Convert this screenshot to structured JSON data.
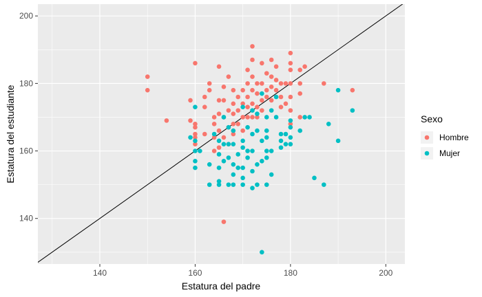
{
  "chart_data": {
    "type": "scatter",
    "xlabel": "Estatura del padre",
    "ylabel": "Estatura del estudiante",
    "xlim": [
      127,
      204
    ],
    "ylim": [
      126.5,
      203.5
    ],
    "x_ticks": [
      140,
      160,
      180,
      200
    ],
    "y_ticks": [
      140,
      160,
      180,
      200
    ],
    "grid": true,
    "reference_line": {
      "slope": 1,
      "intercept": 0,
      "color": "#000000"
    },
    "legend": {
      "title": "Sexo",
      "placement": "right"
    },
    "series": [
      {
        "name": "Hombre",
        "color": "#F8766D",
        "points": [
          [
            150,
            182
          ],
          [
            150,
            178
          ],
          [
            154,
            169
          ],
          [
            159,
            175
          ],
          [
            159,
            169
          ],
          [
            160,
            186
          ],
          [
            160,
            168
          ],
          [
            160,
            167
          ],
          [
            160,
            165
          ],
          [
            160,
            164
          ],
          [
            160,
            162
          ],
          [
            162,
            176
          ],
          [
            162,
            173
          ],
          [
            162,
            165
          ],
          [
            163,
            180
          ],
          [
            163,
            178
          ],
          [
            164,
            170
          ],
          [
            164,
            168
          ],
          [
            164,
            164
          ],
          [
            164,
            160
          ],
          [
            165,
            185
          ],
          [
            165,
            175
          ],
          [
            165,
            171
          ],
          [
            165,
            166
          ],
          [
            165,
            161
          ],
          [
            166,
            179
          ],
          [
            166,
            175
          ],
          [
            166,
            170
          ],
          [
            166,
            164
          ],
          [
            166,
            139
          ],
          [
            167,
            182
          ],
          [
            167,
            172
          ],
          [
            167,
            167
          ],
          [
            167,
            162
          ],
          [
            168,
            178
          ],
          [
            168,
            174
          ],
          [
            168,
            171
          ],
          [
            168,
            168
          ],
          [
            168,
            165
          ],
          [
            169,
            176
          ],
          [
            169,
            172
          ],
          [
            169,
            168
          ],
          [
            170,
            178
          ],
          [
            170,
            174
          ],
          [
            170,
            170
          ],
          [
            170,
            166
          ],
          [
            171,
            184
          ],
          [
            171,
            180
          ],
          [
            171,
            176
          ],
          [
            171,
            173
          ],
          [
            171,
            170
          ],
          [
            172,
            191
          ],
          [
            172,
            187
          ],
          [
            172,
            182
          ],
          [
            172,
            178
          ],
          [
            172,
            174
          ],
          [
            172,
            170
          ],
          [
            173,
            180
          ],
          [
            173,
            177
          ],
          [
            173,
            173
          ],
          [
            173,
            170
          ],
          [
            174,
            186
          ],
          [
            174,
            180
          ],
          [
            174,
            175
          ],
          [
            174,
            172
          ],
          [
            175,
            183
          ],
          [
            175,
            178
          ],
          [
            175,
            176
          ],
          [
            176,
            187
          ],
          [
            176,
            182
          ],
          [
            176,
            179
          ],
          [
            176,
            175
          ],
          [
            177,
            185
          ],
          [
            177,
            181
          ],
          [
            177,
            178
          ],
          [
            178,
            180
          ],
          [
            178,
            176
          ],
          [
            178,
            173
          ],
          [
            179,
            180
          ],
          [
            179,
            174
          ],
          [
            180,
            189
          ],
          [
            180,
            186
          ],
          [
            180,
            184
          ],
          [
            180,
            180
          ],
          [
            180,
            176
          ],
          [
            180,
            172
          ],
          [
            180,
            168
          ],
          [
            182,
            184
          ],
          [
            182,
            180
          ],
          [
            182,
            177
          ],
          [
            182,
            170
          ],
          [
            183,
            185
          ],
          [
            187,
            180
          ],
          [
            193,
            178
          ]
        ]
      },
      {
        "name": "Mujer",
        "color": "#00BFC4",
        "points": [
          [
            159,
            164
          ],
          [
            160,
            173
          ],
          [
            160,
            163
          ],
          [
            160,
            160
          ],
          [
            160,
            157
          ],
          [
            160,
            155
          ],
          [
            161,
            160
          ],
          [
            163,
            156
          ],
          [
            163,
            150
          ],
          [
            164,
            165
          ],
          [
            165,
            163
          ],
          [
            165,
            159
          ],
          [
            165,
            155
          ],
          [
            165,
            151
          ],
          [
            165,
            150
          ],
          [
            166,
            170
          ],
          [
            166,
            162
          ],
          [
            166,
            157
          ],
          [
            167,
            167
          ],
          [
            167,
            162
          ],
          [
            167,
            158
          ],
          [
            167,
            150
          ],
          [
            168,
            166
          ],
          [
            168,
            162
          ],
          [
            168,
            156
          ],
          [
            168,
            153
          ],
          [
            168,
            150
          ],
          [
            169,
            159
          ],
          [
            169,
            155
          ],
          [
            170,
            173
          ],
          [
            170,
            163
          ],
          [
            170,
            161
          ],
          [
            170,
            155
          ],
          [
            170,
            152
          ],
          [
            170,
            150
          ],
          [
            171,
            167
          ],
          [
            171,
            160
          ],
          [
            171,
            158
          ],
          [
            172,
            172
          ],
          [
            172,
            165
          ],
          [
            172,
            160
          ],
          [
            172,
            154
          ],
          [
            172,
            149
          ],
          [
            173,
            171
          ],
          [
            173,
            166
          ],
          [
            173,
            156
          ],
          [
            173,
            150
          ],
          [
            174,
            177
          ],
          [
            174,
            163
          ],
          [
            174,
            157
          ],
          [
            174,
            130
          ],
          [
            175,
            170
          ],
          [
            175,
            166
          ],
          [
            175,
            164
          ],
          [
            175,
            160
          ],
          [
            175,
            158
          ],
          [
            175,
            150
          ],
          [
            176,
            172
          ],
          [
            176,
            160
          ],
          [
            176,
            153
          ],
          [
            177,
            176
          ],
          [
            177,
            170
          ],
          [
            178,
            165
          ],
          [
            178,
            163
          ],
          [
            178,
            161
          ],
          [
            179,
            165
          ],
          [
            179,
            162
          ],
          [
            180,
            169
          ],
          [
            180,
            167
          ],
          [
            180,
            164
          ],
          [
            180,
            162
          ],
          [
            182,
            166
          ],
          [
            183,
            170
          ],
          [
            184,
            170
          ],
          [
            185,
            152
          ],
          [
            187,
            150
          ],
          [
            188,
            168
          ],
          [
            190,
            178
          ],
          [
            190,
            163
          ],
          [
            193,
            172
          ]
        ]
      }
    ]
  }
}
